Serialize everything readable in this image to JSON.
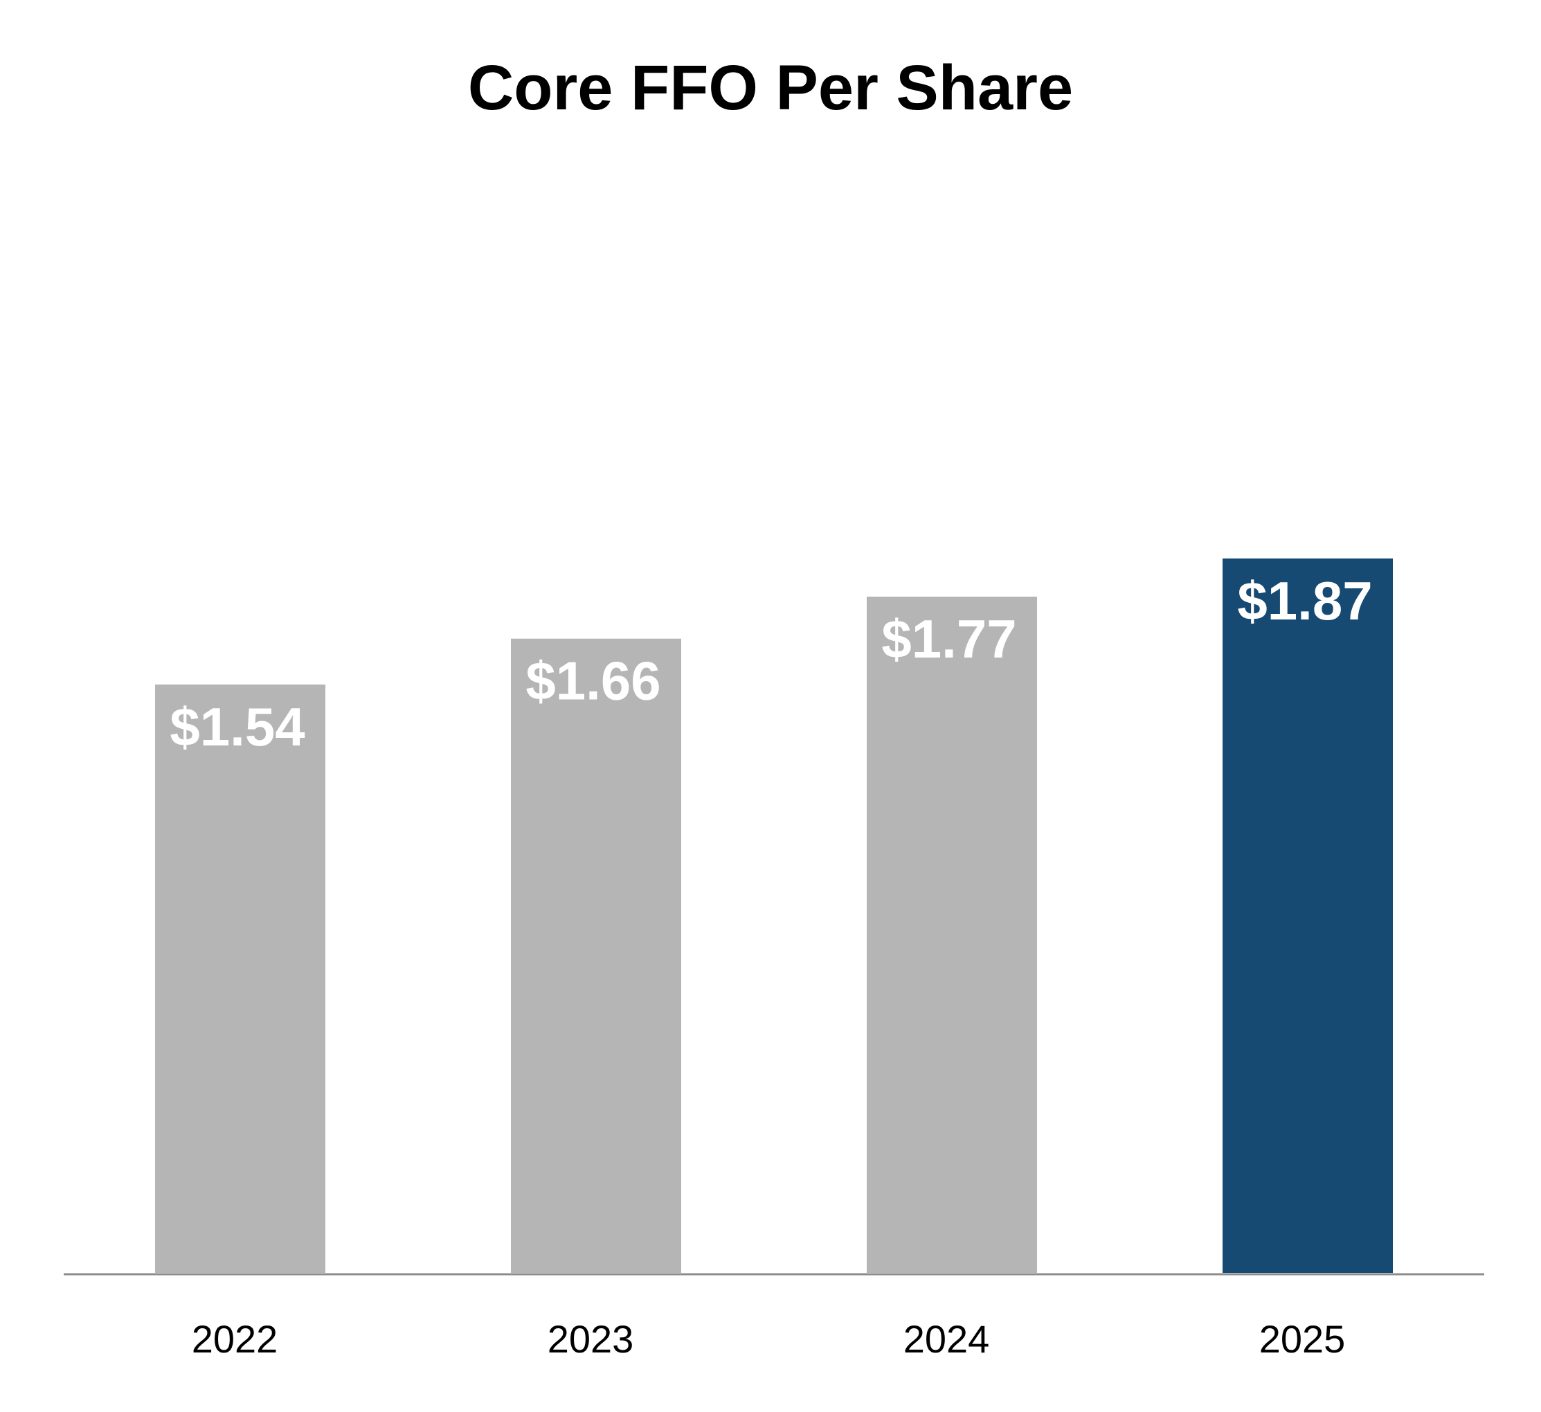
{
  "chart_data": {
    "type": "bar",
    "title": "Core FFO Per Share",
    "xlabel": "",
    "ylabel": "",
    "categories": [
      "2022",
      "2023",
      "2024",
      "2025"
    ],
    "values": [
      1.54,
      1.66,
      1.77,
      1.87
    ],
    "data_labels": [
      "$1.54",
      "$1.66",
      "$1.77",
      "$1.87"
    ],
    "ylim": [
      0,
      3.04
    ],
    "grid": false,
    "legend": "none",
    "colors": {
      "default_bar": "#b5b5b5",
      "highlight_bar": "#164a73",
      "axis_line": "#8c8c8c",
      "data_label": "#ffffff",
      "title": "#000000",
      "tick_label": "#000000"
    },
    "highlight_categories": [
      "2025"
    ]
  }
}
